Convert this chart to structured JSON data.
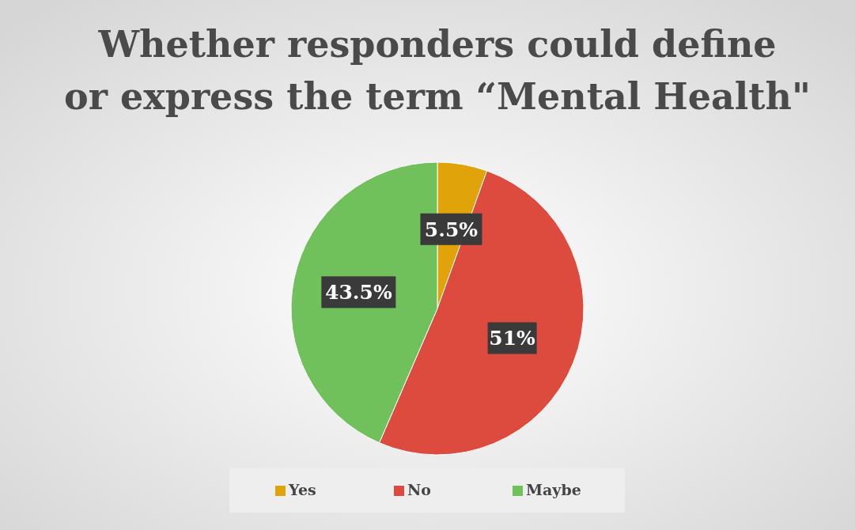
{
  "chart_data": {
    "type": "pie",
    "title": "Whether responders could define\nor express the term “Mental Health\"",
    "categories": [
      "Yes",
      "No",
      "Maybe"
    ],
    "values": [
      5.5,
      51,
      43.5
    ],
    "colors": [
      "#e0a30a",
      "#dd4b3e",
      "#70c05c"
    ],
    "value_labels": [
      "5.5%",
      "51%",
      "43.5%"
    ],
    "legend": "bottom"
  }
}
